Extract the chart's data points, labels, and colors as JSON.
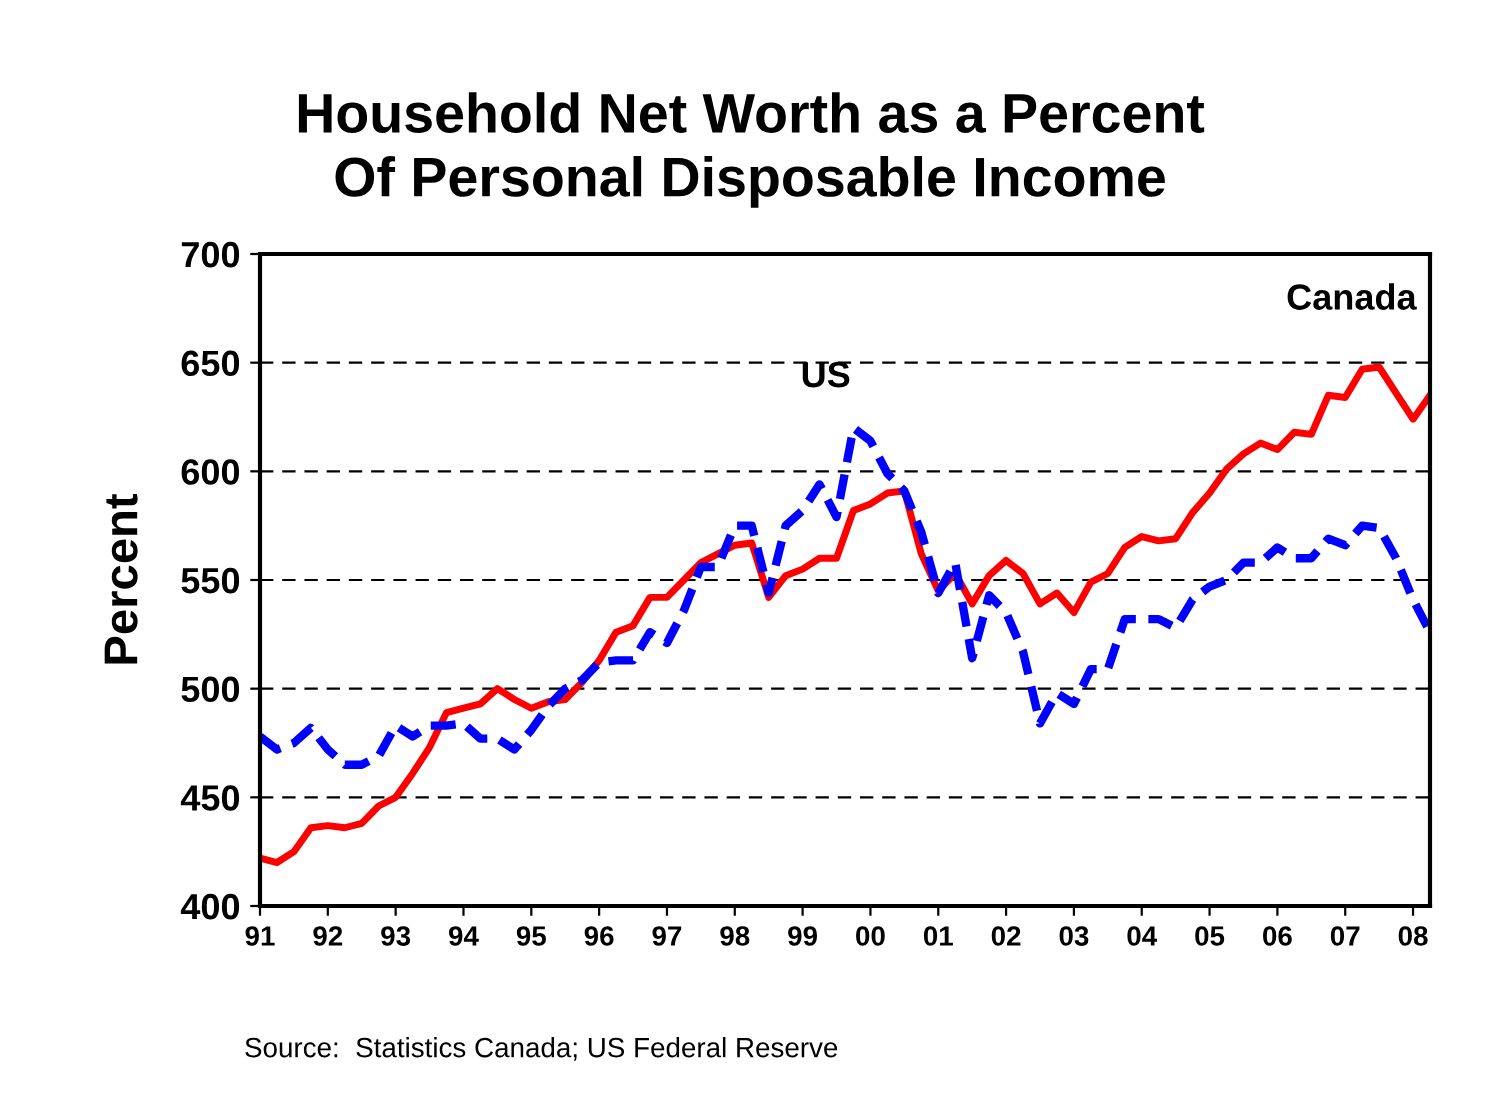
{
  "chart_data": {
    "type": "line",
    "title": "Household Net Worth as a Percent\nOf Personal Disposable Income",
    "ylabel": "Percent",
    "x": [
      1991,
      1991.25,
      1991.5,
      1991.75,
      1992,
      1992.25,
      1992.5,
      1992.75,
      1993,
      1993.25,
      1993.5,
      1993.75,
      1994,
      1994.25,
      1994.5,
      1994.75,
      1995,
      1995.25,
      1995.5,
      1995.75,
      1996,
      1996.25,
      1996.5,
      1996.75,
      1997,
      1997.25,
      1997.5,
      1997.75,
      1998,
      1998.25,
      1998.5,
      1998.75,
      1999,
      1999.25,
      1999.5,
      1999.75,
      2000,
      2000.25,
      2000.5,
      2000.75,
      2001,
      2001.25,
      2001.5,
      2001.75,
      2002,
      2002.25,
      2002.5,
      2002.75,
      2003,
      2003.25,
      2003.5,
      2003.75,
      2004,
      2004.25,
      2004.5,
      2004.75,
      2005,
      2005.25,
      2005.5,
      2005.75,
      2006,
      2006.25,
      2006.5,
      2006.75,
      2007,
      2007.25,
      2007.5,
      2007.75,
      2008,
      2008.25
    ],
    "series": [
      {
        "name": "Canada",
        "color": "#ff0000",
        "line_style": "solid",
        "values": [
          422,
          420,
          425,
          436,
          437,
          436,
          438,
          446,
          450,
          461,
          473,
          489,
          491,
          493,
          500,
          495,
          491,
          494,
          495,
          503,
          513,
          526,
          529,
          542,
          542,
          550,
          558,
          562,
          566,
          567,
          542,
          552,
          555,
          560,
          560,
          582,
          585,
          590,
          591,
          562,
          545,
          553,
          539,
          552,
          559,
          553,
          539,
          544,
          535,
          549,
          553,
          565,
          570,
          568,
          569,
          581,
          590,
          601,
          608,
          613,
          610,
          618,
          617,
          635,
          634,
          647,
          648,
          636,
          624,
          635
        ]
      },
      {
        "name": "US",
        "color": "#0000ff",
        "line_style": "dashed",
        "values": [
          478,
          472,
          475,
          482,
          472,
          465,
          465,
          469,
          483,
          478,
          483,
          483,
          484,
          477,
          477,
          472,
          481,
          492,
          500,
          504,
          512,
          513,
          513,
          526,
          521,
          536,
          556,
          556,
          575,
          575,
          544,
          575,
          582,
          594,
          579,
          620,
          614,
          599,
          591,
          572,
          544,
          558,
          514,
          543,
          535,
          517,
          484,
          498,
          493,
          509,
          509,
          532,
          532,
          532,
          528,
          541,
          547,
          550,
          558,
          558,
          565,
          560,
          560,
          569,
          566,
          575,
          574,
          560,
          541,
          526
        ]
      }
    ],
    "xlim": [
      1991,
      2008.25
    ],
    "xticks": [
      {
        "value": 1991,
        "label": "91"
      },
      {
        "value": 1992,
        "label": "92"
      },
      {
        "value": 1993,
        "label": "93"
      },
      {
        "value": 1994,
        "label": "94"
      },
      {
        "value": 1995,
        "label": "95"
      },
      {
        "value": 1996,
        "label": "96"
      },
      {
        "value": 1997,
        "label": "97"
      },
      {
        "value": 1998,
        "label": "98"
      },
      {
        "value": 1999,
        "label": "99"
      },
      {
        "value": 2000,
        "label": "00"
      },
      {
        "value": 2001,
        "label": "01"
      },
      {
        "value": 2002,
        "label": "02"
      },
      {
        "value": 2003,
        "label": "03"
      },
      {
        "value": 2004,
        "label": "04"
      },
      {
        "value": 2005,
        "label": "05"
      },
      {
        "value": 2006,
        "label": "06"
      },
      {
        "value": 2007,
        "label": "07"
      },
      {
        "value": 2008,
        "label": "08"
      }
    ],
    "ylim": [
      400,
      700
    ],
    "yticks": [
      400,
      450,
      500,
      550,
      600,
      650,
      700
    ],
    "grid": "y",
    "legend": false,
    "marker": "none",
    "annotations": [
      "Source:  Statistics Canada; US Federal Reserve"
    ]
  }
}
